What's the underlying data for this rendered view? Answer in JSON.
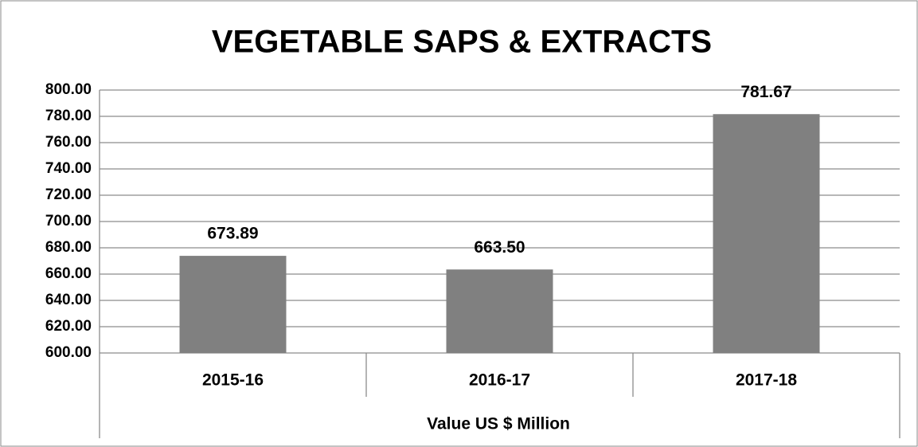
{
  "chart_data": {
    "type": "bar",
    "title": "VEGETABLE SAPS & EXTRACTS",
    "x_label": "Value US $ Million",
    "categories": [
      "2015-16",
      "2016-17",
      "2017-18"
    ],
    "values": [
      673.89,
      663.5,
      781.67
    ],
    "value_labels": [
      "673.89",
      "663.50",
      "781.67"
    ],
    "color": "#808080",
    "ylim": [
      600,
      800
    ],
    "yticks": [
      {
        "value": 600,
        "label": "600.00"
      },
      {
        "value": 620,
        "label": "620.00"
      },
      {
        "value": 640,
        "label": "640.00"
      },
      {
        "value": 660,
        "label": "660.00"
      },
      {
        "value": 680,
        "label": "680.00"
      },
      {
        "value": 700,
        "label": "700.00"
      },
      {
        "value": 720,
        "label": "720.00"
      },
      {
        "value": 740,
        "label": "740.00"
      },
      {
        "value": 760,
        "label": "760.00"
      },
      {
        "value": 780,
        "label": "780.00"
      },
      {
        "value": 800,
        "label": "800.00"
      }
    ],
    "grid": true
  }
}
